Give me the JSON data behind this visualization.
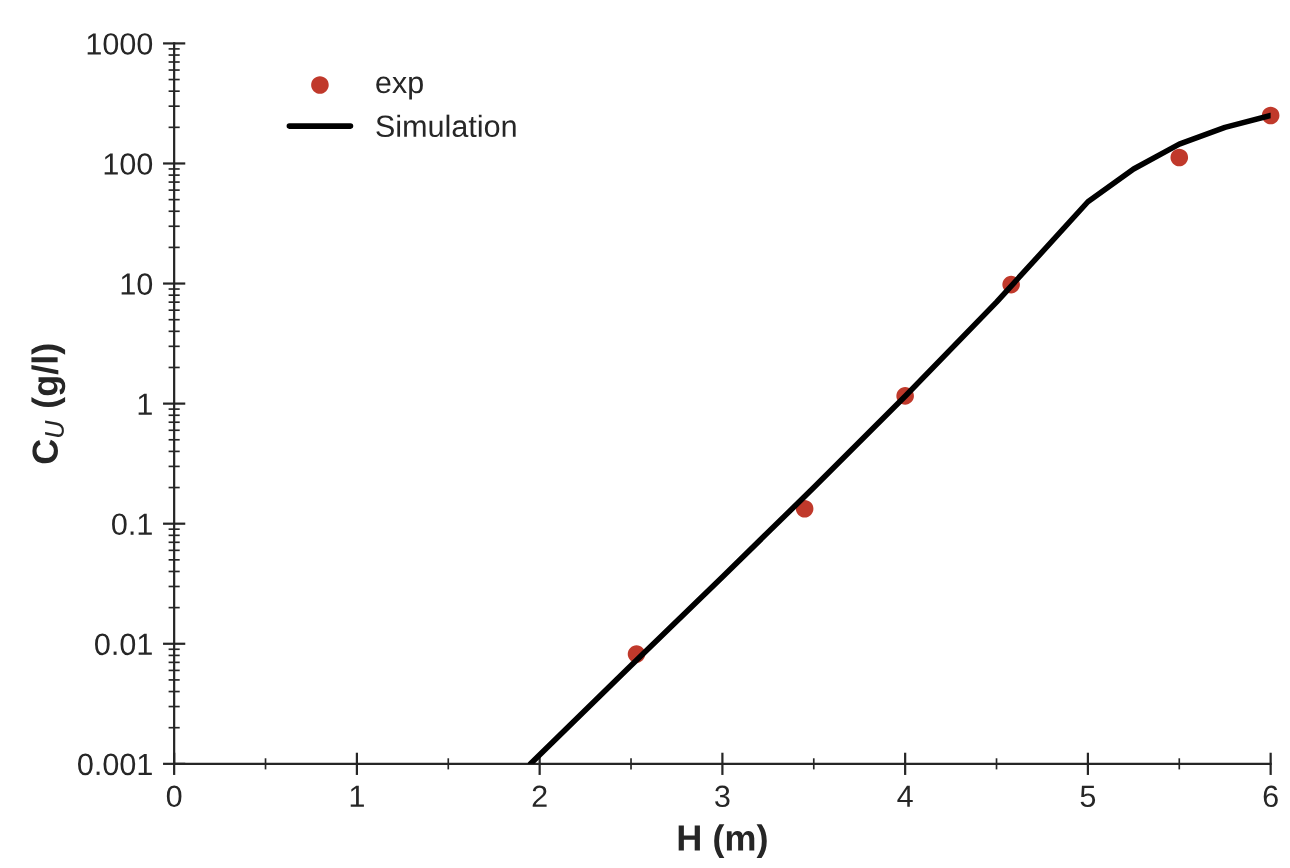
{
  "chart_data": {
    "type": "scatter",
    "xlabel": "H (m)",
    "ylabel": "C$_{U}$ (g/l)",
    "log": "y",
    "series": [
      {
        "name": "exp",
        "color": "#c0392b",
        "marker": "circle",
        "x": [
          2.53,
          3.45,
          4.0,
          4.58,
          5.5,
          6.0
        ],
        "values": [
          0.0082,
          0.133,
          1.16,
          9.8,
          112,
          251
        ]
      },
      {
        "name": "Simulation",
        "type": "line",
        "color": "#000000",
        "marker": "none",
        "line_style": "solid",
        "x": [
          1.95,
          2.5,
          3.0,
          3.5,
          4.0,
          4.5,
          5.0,
          5.25,
          5.5,
          5.75,
          6.0
        ],
        "values": [
          0.001,
          0.0066,
          0.036,
          0.2,
          1.15,
          7,
          48,
          90,
          145,
          200,
          251
        ]
      }
    ],
    "xlim": [
      0,
      6
    ],
    "xticks": [
      0,
      1,
      2,
      3,
      4,
      5,
      6
    ],
    "ylim": [
      0.001,
      1000
    ],
    "yticks": [
      0.001,
      0.01,
      0.1,
      1,
      10,
      100,
      1000
    ],
    "grid": false,
    "legend": "top left"
  }
}
